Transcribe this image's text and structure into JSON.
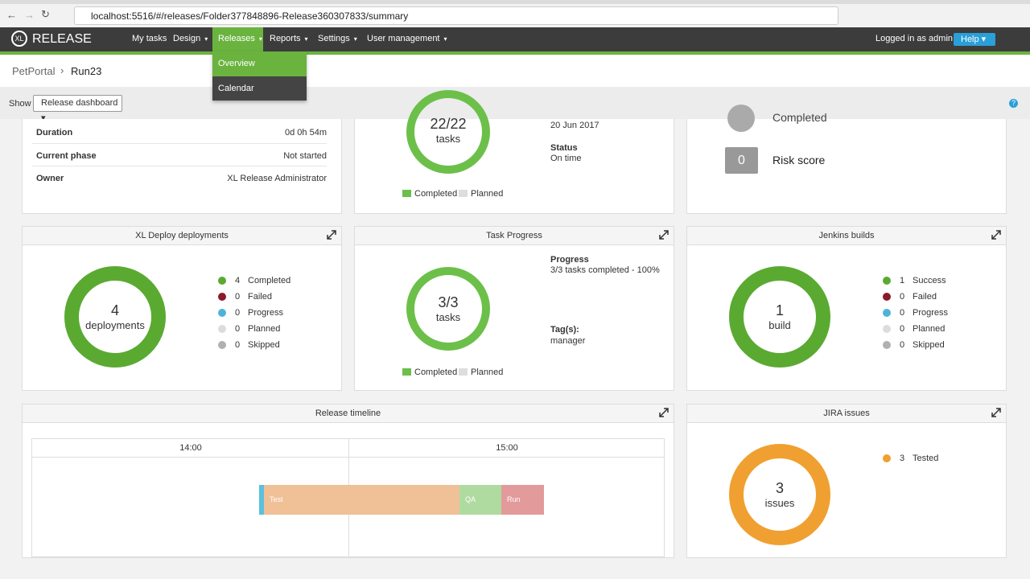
{
  "browser": {
    "url": "localhost:5516/#/releases/Folder377848896-Release360307833/summary"
  },
  "nav": {
    "logo_mark": "XL",
    "logo": "RELEASE",
    "items": [
      "My tasks",
      "Design",
      "Releases",
      "Reports",
      "Settings",
      "User management"
    ],
    "user": "Logged in as admin",
    "help": "Help"
  },
  "menu": [
    "Overview",
    "Calendar"
  ],
  "breadcrumb": [
    "PetPortal",
    "Run23"
  ],
  "toolbar": {
    "show": "Show",
    "view": "Release dashboard"
  },
  "details": [
    {
      "label": "Duration",
      "value": "0d 0h 54m"
    },
    {
      "label": "Current phase",
      "value": "Not started"
    },
    {
      "label": "Owner",
      "value": "XL Release Administrator"
    }
  ],
  "release_progress": {
    "center": "22/22",
    "unit": "tasks",
    "legend": [
      "Completed",
      "Planned"
    ],
    "date": "20 Jun 2017",
    "status_label": "Status",
    "status": "On time"
  },
  "health": {
    "state": "Completed",
    "risk": "0",
    "risk_label": "Risk score"
  },
  "deployments": {
    "title": "XL Deploy deployments",
    "center": "4",
    "unit": "deployments",
    "items": [
      {
        "count": 4,
        "label": "Completed",
        "color": "#5aaa32"
      },
      {
        "count": 0,
        "label": "Failed",
        "color": "#8b1a2b"
      },
      {
        "count": 0,
        "label": "Progress",
        "color": "#4fb3d9"
      },
      {
        "count": 0,
        "label": "Planned",
        "color": "#dcdcdc"
      },
      {
        "count": 0,
        "label": "Skipped",
        "color": "#b0b0b0"
      }
    ]
  },
  "task_progress": {
    "title": "Task Progress",
    "center": "3/3",
    "unit": "tasks",
    "progress_label": "Progress",
    "progress": "3/3 tasks completed - 100%",
    "tags_label": "Tag(s):",
    "tags": "manager",
    "legend": [
      "Completed",
      "Planned"
    ]
  },
  "jenkins": {
    "title": "Jenkins builds",
    "center": "1",
    "unit": "build",
    "items": [
      {
        "count": 1,
        "label": "Success",
        "color": "#5aaa32"
      },
      {
        "count": 0,
        "label": "Failed",
        "color": "#8b1a2b"
      },
      {
        "count": 0,
        "label": "Progress",
        "color": "#4fb3d9"
      },
      {
        "count": 0,
        "label": "Planned",
        "color": "#dcdcdc"
      },
      {
        "count": 0,
        "label": "Skipped",
        "color": "#b0b0b0"
      }
    ]
  },
  "timeline": {
    "title": "Release timeline",
    "ticks": [
      "14:00",
      "15:00"
    ],
    "phases": [
      "Test",
      "QA",
      "Run"
    ]
  },
  "jira": {
    "title": "JIRA issues",
    "center": "3",
    "unit": "issues",
    "items": [
      {
        "count": 3,
        "label": "Tested",
        "color": "#f0a030"
      }
    ]
  }
}
